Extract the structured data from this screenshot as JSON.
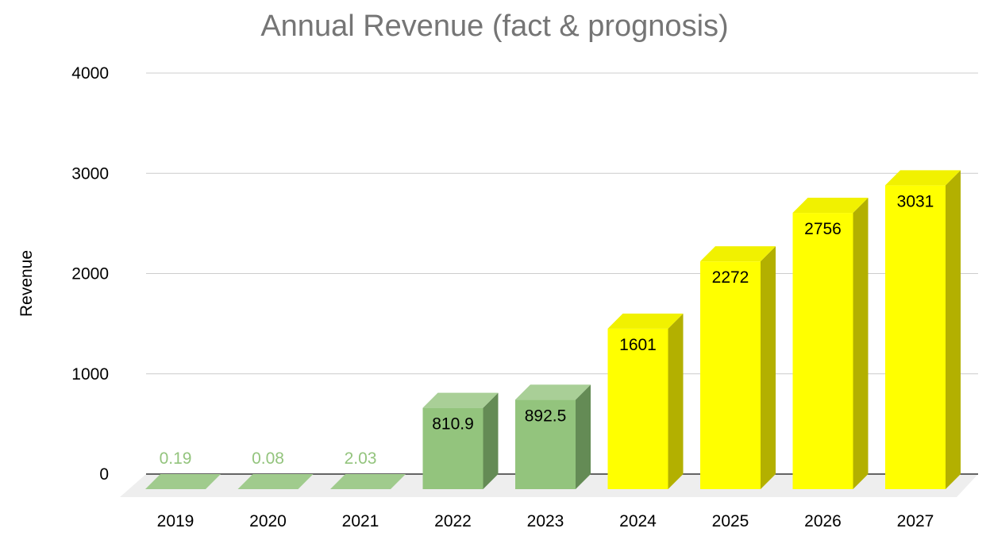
{
  "chart_data": {
    "type": "bar",
    "title": "Annual Revenue (fact & prognosis)",
    "xlabel": "",
    "ylabel": "Revenue",
    "ylim": [
      0,
      4000
    ],
    "yticks": [
      "0",
      "1000",
      "2000",
      "3000",
      "4000"
    ],
    "grid": true,
    "style": "3d",
    "categories": [
      "2019",
      "2020",
      "2021",
      "2022",
      "2023",
      "2024",
      "2025",
      "2026",
      "2027"
    ],
    "values": [
      0.19,
      0.08,
      2.03,
      810.9,
      892.5,
      1601,
      2272,
      2756,
      3031
    ],
    "data_labels": [
      "0.19",
      "0.08",
      "2.03",
      "810.9",
      "892.5",
      "1601",
      "2272",
      "2756",
      "3031"
    ],
    "groups": [
      "fact",
      "fact",
      "fact",
      "fact",
      "fact",
      "prognosis",
      "prognosis",
      "prognosis",
      "prognosis"
    ],
    "colors": {
      "fact": "#93c47d",
      "prognosis": "#ffff00"
    }
  }
}
